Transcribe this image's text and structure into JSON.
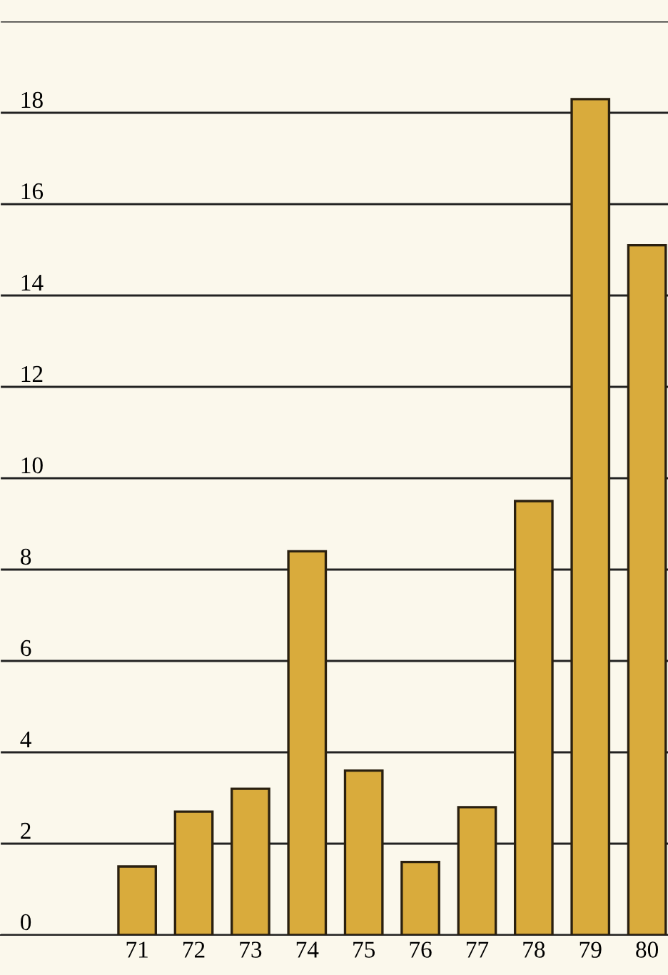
{
  "chart_data": {
    "type": "bar",
    "categories": [
      "71",
      "72",
      "73",
      "74",
      "75",
      "76",
      "77",
      "78",
      "79",
      "80"
    ],
    "values": [
      1.5,
      2.7,
      3.2,
      8.4,
      3.6,
      1.6,
      2.8,
      9.5,
      18.3,
      15.1
    ],
    "color": "#d9ab3c",
    "ylim": [
      0,
      20
    ],
    "yticks": [
      0,
      2,
      4,
      6,
      8,
      10,
      12,
      14,
      16,
      18,
      {
        "value": 20,
        "label": null
      }
    ],
    "grid": "y",
    "legend": false
  }
}
